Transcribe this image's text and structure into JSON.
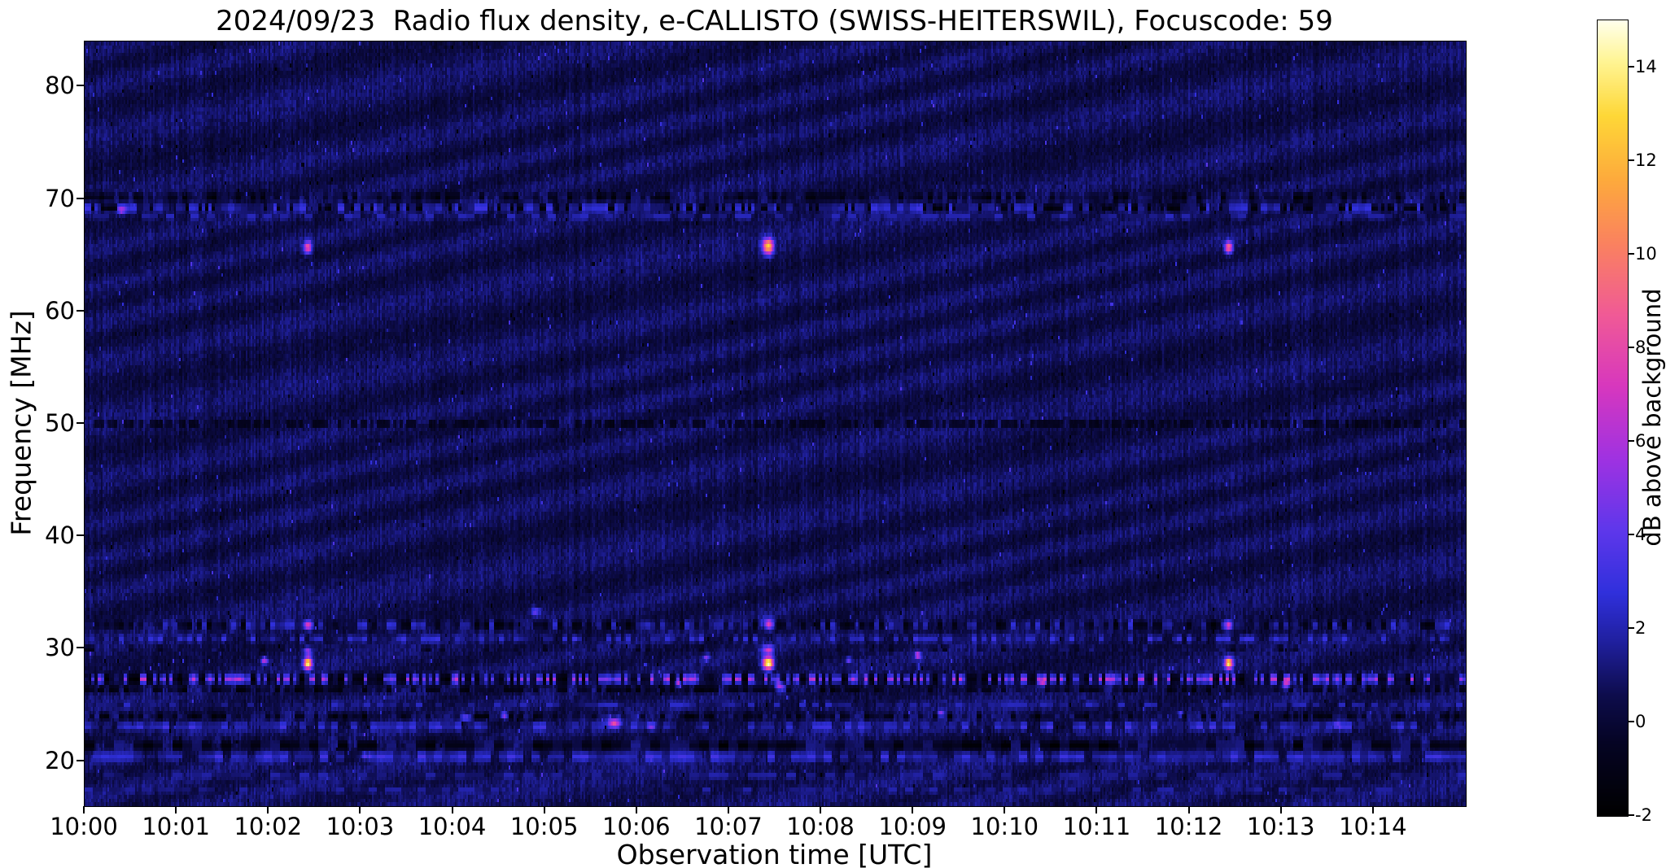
{
  "figure": {
    "title": "2024/09/23  Radio flux density, e-CALLISTO (SWISS-HEITERSWIL), Focuscode: 59",
    "xlabel": "Observation time [UTC]",
    "ylabel": "Frequency [MHz]",
    "colorbar_label": "dB above background"
  },
  "chart_data": {
    "type": "heatmap",
    "subtype": "radio-spectrogram",
    "title": "2024/09/23  Radio flux density, e-CALLISTO (SWISS-HEITERSWIL), Focuscode: 59",
    "date": "2024/09/23",
    "instrument": "e-CALLISTO (SWISS-HEITERSWIL)",
    "focuscode": 59,
    "xlabel": "Observation time [UTC]",
    "ylabel": "Frequency [MHz]",
    "x_start_utc": "10:00",
    "x_unit": "minutes after 10:00 UTC",
    "xlim": [
      0,
      15
    ],
    "ylim": [
      16,
      84
    ],
    "x_ticks": [
      {
        "m": 0,
        "label": "10:00"
      },
      {
        "m": 1,
        "label": "10:01"
      },
      {
        "m": 2,
        "label": "10:02"
      },
      {
        "m": 3,
        "label": "10:03"
      },
      {
        "m": 4,
        "label": "10:04"
      },
      {
        "m": 5,
        "label": "10:05"
      },
      {
        "m": 6,
        "label": "10:06"
      },
      {
        "m": 7,
        "label": "10:07"
      },
      {
        "m": 8,
        "label": "10:08"
      },
      {
        "m": 9,
        "label": "10:09"
      },
      {
        "m": 10,
        "label": "10:10"
      },
      {
        "m": 11,
        "label": "10:11"
      },
      {
        "m": 12,
        "label": "10:12"
      },
      {
        "m": 13,
        "label": "10:13"
      },
      {
        "m": 14,
        "label": "10:14"
      }
    ],
    "y_ticks": [
      80,
      70,
      60,
      50,
      40,
      30,
      20
    ],
    "colorbar": {
      "label": "dB above background",
      "range": [
        -2,
        15
      ],
      "ticks": [
        -2,
        0,
        2,
        4,
        6,
        8,
        10,
        12,
        14
      ]
    },
    "colormap": {
      "name": "gnuplot2-like (black-blue-magenta-orange-yellow-white)",
      "anchors": [
        [
          0.0,
          [
            0,
            0,
            0
          ]
        ],
        [
          0.09,
          [
            5,
            4,
            35
          ]
        ],
        [
          0.15,
          [
            13,
            12,
            75
          ]
        ],
        [
          0.22,
          [
            32,
            32,
            160
          ]
        ],
        [
          0.28,
          [
            48,
            48,
            220
          ]
        ],
        [
          0.36,
          [
            95,
            55,
            235
          ]
        ],
        [
          0.45,
          [
            160,
            50,
            225
          ]
        ],
        [
          0.54,
          [
            215,
            55,
            190
          ]
        ],
        [
          0.63,
          [
            240,
            90,
            150
          ]
        ],
        [
          0.72,
          [
            250,
            130,
            95
          ]
        ],
        [
          0.8,
          [
            253,
            170,
            60
          ]
        ],
        [
          0.88,
          [
            254,
            215,
            55
          ]
        ],
        [
          0.95,
          [
            255,
            245,
            150
          ]
        ],
        [
          1.0,
          [
            255,
            255,
            235
          ]
        ]
      ]
    },
    "background": {
      "mean_db": 0.6,
      "noise_db": 0.9,
      "ripple_db": 0.45
    },
    "interference_bands": [
      {
        "f": 70.1,
        "w": 0.45,
        "block_s": 3,
        "duty": 0.75,
        "v1": -2.0,
        "v2": 1.2
      },
      {
        "f": 69.2,
        "w": 0.5,
        "block_s": 4,
        "duty": 0.9,
        "v1": 0.5,
        "v2": 3.2
      },
      {
        "f": 69.2,
        "w": 0.35,
        "block_s": 2.5,
        "duty": 0.3,
        "v1": -2.0,
        "v2": -1.0
      },
      {
        "f": 68.4,
        "w": 0.3,
        "block_s": 5,
        "duty": 0.5,
        "v1": 0.8,
        "v2": 2.4
      },
      {
        "f": 50.0,
        "w": 0.22,
        "block_s": 2.5,
        "duty": 0.55,
        "v1": -2.0,
        "v2": -0.8
      },
      {
        "f": 32.1,
        "w": 0.45,
        "block_s": 3,
        "duty": 0.75,
        "v1": -1.8,
        "v2": 2.8
      },
      {
        "f": 30.9,
        "w": 0.35,
        "block_s": 3.5,
        "duty": 0.6,
        "v1": 0.5,
        "v2": 3.2
      },
      {
        "f": 30.0,
        "w": 0.25,
        "block_s": 3,
        "duty": 0.3,
        "v1": -1.5,
        "v2": 1.5
      },
      {
        "f": 27.3,
        "w": 0.5,
        "block_s": 3,
        "duty": 0.9,
        "v1": -2.0,
        "v2": 1.0
      },
      {
        "f": 27.3,
        "w": 0.4,
        "block_s": 2.5,
        "duty": 0.45,
        "v1": 3.0,
        "v2": 7.0
      },
      {
        "f": 26.4,
        "w": 0.3,
        "block_s": 3,
        "duty": 0.6,
        "v1": -2.0,
        "v2": 0.5
      },
      {
        "f": 25.0,
        "w": 0.3,
        "block_s": 4,
        "duty": 0.5,
        "v1": 0.5,
        "v2": 2.5
      },
      {
        "f": 24.0,
        "w": 0.35,
        "block_s": 3,
        "duty": 0.7,
        "v1": -1.8,
        "v2": 1.5
      },
      {
        "f": 23.1,
        "w": 0.4,
        "block_s": 4,
        "duty": 0.6,
        "v1": 1.0,
        "v2": 3.5
      },
      {
        "f": 21.4,
        "w": 0.55,
        "block_s": 6,
        "duty": 0.85,
        "v1": -2.0,
        "v2": 1.5
      },
      {
        "f": 20.4,
        "w": 0.45,
        "block_s": 5,
        "duty": 0.8,
        "v1": 1.2,
        "v2": 3.4
      },
      {
        "f": 18.7,
        "w": 0.35,
        "block_s": 6,
        "duty": 0.5,
        "v1": 0.5,
        "v2": 2.2
      },
      {
        "f": 17.4,
        "w": 0.3,
        "block_s": 5,
        "duty": 0.45,
        "v1": 0.6,
        "v2": 2.0
      }
    ],
    "bursts": [
      {
        "t": 2.42,
        "f": 28.7,
        "df": 0.5,
        "dt_s": 2.5,
        "peak": 14
      },
      {
        "t": 2.42,
        "f": 29.8,
        "df": 0.35,
        "dt_s": 2.5,
        "peak": 5
      },
      {
        "t": 2.42,
        "f": 32.1,
        "df": 0.4,
        "dt_s": 2.5,
        "peak": 7
      },
      {
        "t": 2.42,
        "f": 65.7,
        "df": 0.55,
        "dt_s": 2.5,
        "peak": 8
      },
      {
        "t": 7.42,
        "f": 28.7,
        "df": 0.55,
        "dt_s": 3.5,
        "peak": 15
      },
      {
        "t": 7.42,
        "f": 29.9,
        "df": 0.4,
        "dt_s": 3.5,
        "peak": 6
      },
      {
        "t": 7.42,
        "f": 32.2,
        "df": 0.5,
        "dt_s": 3.5,
        "peak": 8
      },
      {
        "t": 7.42,
        "f": 65.8,
        "df": 0.7,
        "dt_s": 3.5,
        "peak": 12
      },
      {
        "t": 12.42,
        "f": 28.7,
        "df": 0.5,
        "dt_s": 2.5,
        "peak": 13
      },
      {
        "t": 12.42,
        "f": 32.1,
        "df": 0.45,
        "dt_s": 2.5,
        "peak": 7
      },
      {
        "t": 12.42,
        "f": 65.7,
        "df": 0.55,
        "dt_s": 2.5,
        "peak": 9
      },
      {
        "t": 1.95,
        "f": 28.9,
        "df": 0.3,
        "dt_s": 2.0,
        "peak": 6
      },
      {
        "t": 3.05,
        "f": 20.5,
        "df": 0.35,
        "dt_s": 3.0,
        "peak": 4
      },
      {
        "t": 4.15,
        "f": 23.9,
        "df": 0.3,
        "dt_s": 2.5,
        "peak": 5.5
      },
      {
        "t": 4.55,
        "f": 24.1,
        "df": 0.3,
        "dt_s": 2.0,
        "peak": 4.5
      },
      {
        "t": 5.75,
        "f": 23.4,
        "df": 0.45,
        "dt_s": 4.0,
        "peak": 7
      },
      {
        "t": 6.15,
        "f": 23.1,
        "df": 0.35,
        "dt_s": 3.0,
        "peak": 5
      },
      {
        "t": 6.45,
        "f": 26.9,
        "df": 0.3,
        "dt_s": 2.0,
        "peak": 5
      },
      {
        "t": 6.75,
        "f": 29.2,
        "df": 0.3,
        "dt_s": 2.0,
        "peak": 4.5
      },
      {
        "t": 7.55,
        "f": 26.6,
        "df": 0.4,
        "dt_s": 3.0,
        "peak": 6
      },
      {
        "t": 9.05,
        "f": 29.4,
        "df": 0.35,
        "dt_s": 2.0,
        "peak": 6
      },
      {
        "t": 9.3,
        "f": 24.3,
        "df": 0.3,
        "dt_s": 2.0,
        "peak": 4
      },
      {
        "t": 10.4,
        "f": 27.0,
        "df": 0.3,
        "dt_s": 2.0,
        "peak": 4.5
      },
      {
        "t": 11.9,
        "f": 24.2,
        "df": 0.3,
        "dt_s": 2.0,
        "peak": 4
      },
      {
        "t": 13.05,
        "f": 26.8,
        "df": 0.35,
        "dt_s": 2.5,
        "peak": 5.5
      },
      {
        "t": 13.6,
        "f": 23.2,
        "df": 0.3,
        "dt_s": 2.0,
        "peak": 4
      },
      {
        "t": 0.4,
        "f": 69.0,
        "df": 0.4,
        "dt_s": 3.0,
        "peak": 4
      },
      {
        "t": 4.9,
        "f": 33.3,
        "df": 0.4,
        "dt_s": 3.0,
        "peak": 3.5
      },
      {
        "t": 8.3,
        "f": 29.0,
        "df": 0.25,
        "dt_s": 1.5,
        "peak": 4
      }
    ]
  }
}
